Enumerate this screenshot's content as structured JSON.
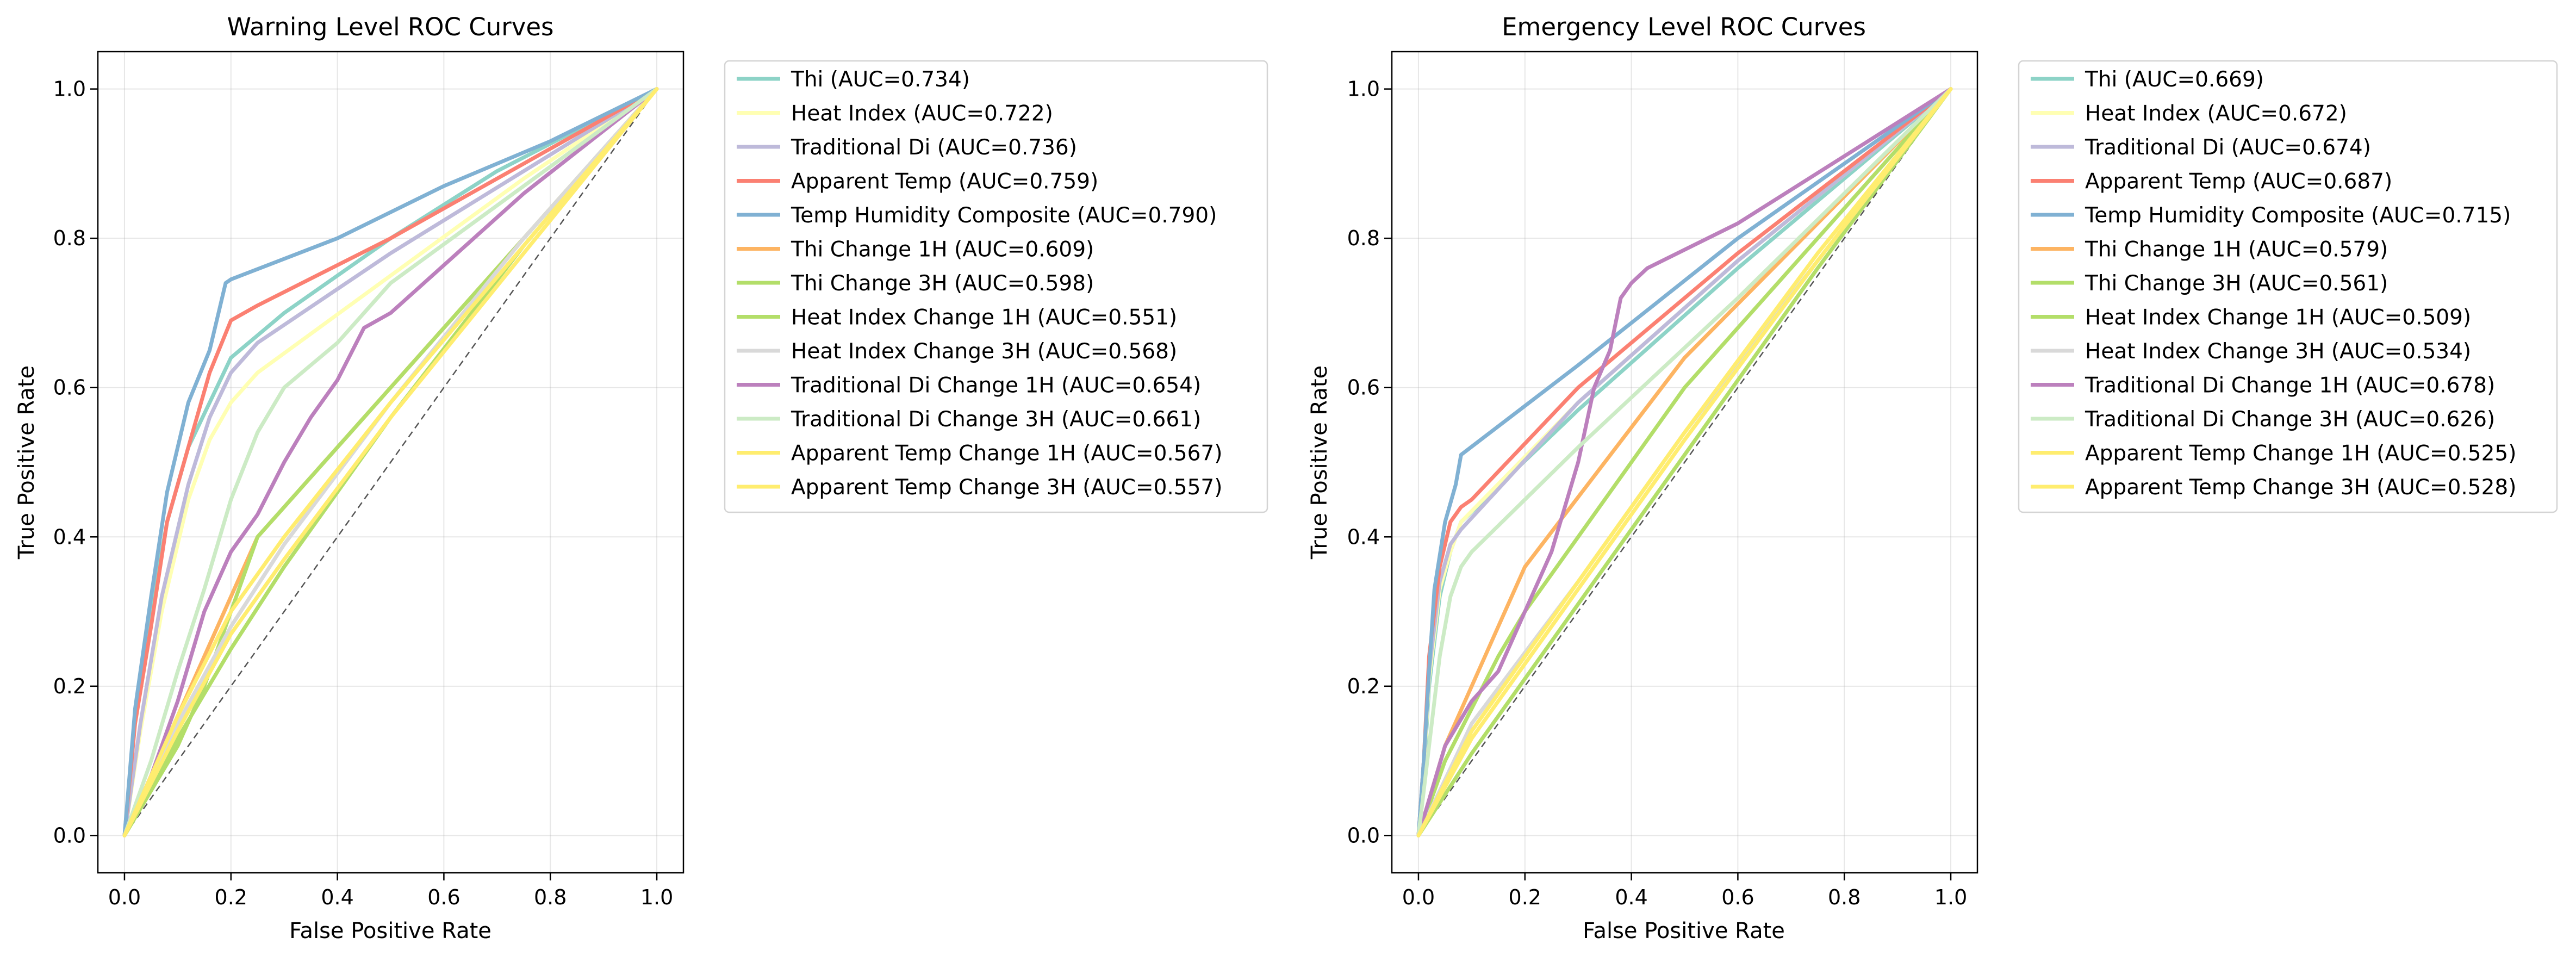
{
  "chart_data": [
    {
      "type": "line",
      "title": "Warning Level ROC Curves",
      "xlabel": "False Positive Rate",
      "ylabel": "True Positive Rate",
      "xlim": [
        -0.05,
        1.05
      ],
      "ylim": [
        -0.05,
        1.05
      ],
      "xticks": [
        "0.0",
        "0.2",
        "0.4",
        "0.6",
        "0.8",
        "1.0"
      ],
      "yticks": [
        "0.0",
        "0.2",
        "0.4",
        "0.6",
        "0.8",
        "1.0"
      ],
      "grid": true,
      "legend_position": "outside-right",
      "reference_line": "diagonal",
      "series": [
        {
          "name": "Thi (AUC=0.734)",
          "color": "#8dd3c7",
          "x": [
            0,
            0.02,
            0.05,
            0.08,
            0.12,
            0.16,
            0.2,
            0.3,
            0.5,
            0.7,
            1.0
          ],
          "y": [
            0,
            0.16,
            0.3,
            0.42,
            0.52,
            0.58,
            0.64,
            0.7,
            0.8,
            0.89,
            1.0
          ]
        },
        {
          "name": "Heat Index (AUC=0.722)",
          "color": "#ffffb3",
          "x": [
            0,
            0.03,
            0.07,
            0.12,
            0.16,
            0.2,
            0.25,
            0.5,
            0.75,
            1.0
          ],
          "y": [
            0,
            0.14,
            0.3,
            0.45,
            0.53,
            0.58,
            0.62,
            0.75,
            0.88,
            1.0
          ]
        },
        {
          "name": "Traditional Di (AUC=0.736)",
          "color": "#bebada",
          "x": [
            0,
            0.03,
            0.07,
            0.12,
            0.16,
            0.2,
            0.25,
            0.5,
            0.75,
            1.0
          ],
          "y": [
            0,
            0.15,
            0.32,
            0.47,
            0.56,
            0.62,
            0.66,
            0.78,
            0.89,
            1.0
          ]
        },
        {
          "name": "Apparent Temp (AUC=0.759)",
          "color": "#fb8072",
          "x": [
            0,
            0.02,
            0.05,
            0.08,
            0.12,
            0.16,
            0.2,
            0.25,
            0.5,
            0.75,
            1.0
          ],
          "y": [
            0,
            0.15,
            0.28,
            0.42,
            0.52,
            0.62,
            0.69,
            0.71,
            0.8,
            0.9,
            1.0
          ]
        },
        {
          "name": "Temp Humidity Composite (AUC=0.790)",
          "color": "#80b1d3",
          "x": [
            0,
            0.02,
            0.05,
            0.08,
            0.12,
            0.16,
            0.19,
            0.2,
            0.4,
            0.6,
            0.8,
            1.0
          ],
          "y": [
            0,
            0.17,
            0.32,
            0.46,
            0.58,
            0.65,
            0.74,
            0.745,
            0.8,
            0.87,
            0.93,
            1.0
          ]
        },
        {
          "name": "Thi Change 1H (AUC=0.609)",
          "color": "#fdb462",
          "x": [
            0,
            0.05,
            0.1,
            0.15,
            0.2,
            0.25,
            0.5,
            0.75,
            1.0
          ],
          "y": [
            0,
            0.08,
            0.16,
            0.24,
            0.32,
            0.4,
            0.6,
            0.8,
            1.0
          ]
        },
        {
          "name": "Thi Change 3H (AUC=0.598)",
          "color": "#b3de69",
          "x": [
            0,
            0.05,
            0.1,
            0.15,
            0.2,
            0.25,
            0.5,
            0.75,
            1.0
          ],
          "y": [
            0,
            0.06,
            0.12,
            0.2,
            0.3,
            0.4,
            0.6,
            0.8,
            1.0
          ]
        },
        {
          "name": "Heat Index Change 1H (AUC=0.551)",
          "color": "#b3de69",
          "x": [
            0,
            0.1,
            0.2,
            0.3,
            0.5,
            0.75,
            1.0
          ],
          "y": [
            0,
            0.13,
            0.25,
            0.36,
            0.56,
            0.79,
            1.0
          ]
        },
        {
          "name": "Heat Index Change 3H (AUC=0.568)",
          "color": "#d9d9d9",
          "x": [
            0,
            0.1,
            0.2,
            0.3,
            0.5,
            0.75,
            1.0
          ],
          "y": [
            0,
            0.15,
            0.28,
            0.39,
            0.58,
            0.8,
            1.0
          ]
        },
        {
          "name": "Traditional Di Change 1H (AUC=0.654)",
          "color": "#bc80bd",
          "x": [
            0,
            0.05,
            0.1,
            0.15,
            0.2,
            0.25,
            0.3,
            0.35,
            0.4,
            0.45,
            0.5,
            0.75,
            1.0
          ],
          "y": [
            0,
            0.08,
            0.18,
            0.3,
            0.38,
            0.43,
            0.5,
            0.56,
            0.61,
            0.68,
            0.7,
            0.86,
            1.0
          ]
        },
        {
          "name": "Traditional Di Change 3H (AUC=0.661)",
          "color": "#ccebc5",
          "x": [
            0,
            0.05,
            0.1,
            0.15,
            0.2,
            0.25,
            0.3,
            0.35,
            0.4,
            0.45,
            0.5,
            0.75,
            1.0
          ],
          "y": [
            0,
            0.1,
            0.22,
            0.33,
            0.45,
            0.54,
            0.6,
            0.63,
            0.66,
            0.7,
            0.74,
            0.87,
            1.0
          ]
        },
        {
          "name": "Apparent Temp Change 1H (AUC=0.567)",
          "color": "#ffed6f",
          "x": [
            0,
            0.1,
            0.2,
            0.3,
            0.5,
            0.75,
            1.0
          ],
          "y": [
            0,
            0.16,
            0.3,
            0.4,
            0.58,
            0.79,
            1.0
          ]
        },
        {
          "name": "Apparent Temp Change 3H (AUC=0.557)",
          "color": "#ffed6f",
          "x": [
            0,
            0.1,
            0.2,
            0.3,
            0.5,
            0.75,
            1.0
          ],
          "y": [
            0,
            0.14,
            0.27,
            0.37,
            0.56,
            0.78,
            1.0
          ]
        }
      ]
    },
    {
      "type": "line",
      "title": "Emergency Level ROC Curves",
      "xlabel": "False Positive Rate",
      "ylabel": "True Positive Rate",
      "xlim": [
        -0.05,
        1.05
      ],
      "ylim": [
        -0.05,
        1.05
      ],
      "xticks": [
        "0.0",
        "0.2",
        "0.4",
        "0.6",
        "0.8",
        "1.0"
      ],
      "yticks": [
        "0.0",
        "0.2",
        "0.4",
        "0.6",
        "0.8",
        "1.0"
      ],
      "grid": true,
      "legend_position": "outside-right",
      "reference_line": "diagonal",
      "series": [
        {
          "name": "Thi (AUC=0.669)",
          "color": "#8dd3c7",
          "x": [
            0,
            0.01,
            0.02,
            0.04,
            0.06,
            0.08,
            0.3,
            0.6,
            1.0
          ],
          "y": [
            0,
            0.08,
            0.2,
            0.32,
            0.38,
            0.42,
            0.57,
            0.76,
            1.0
          ]
        },
        {
          "name": "Heat Index (AUC=0.672)",
          "color": "#ffffb3",
          "x": [
            0,
            0.01,
            0.02,
            0.04,
            0.06,
            0.08,
            0.3,
            0.6,
            1.0
          ],
          "y": [
            0,
            0.09,
            0.21,
            0.33,
            0.38,
            0.42,
            0.58,
            0.77,
            1.0
          ]
        },
        {
          "name": "Traditional Di (AUC=0.674)",
          "color": "#bebada",
          "x": [
            0,
            0.01,
            0.02,
            0.04,
            0.06,
            0.08,
            0.3,
            0.6,
            1.0
          ],
          "y": [
            0,
            0.1,
            0.22,
            0.34,
            0.39,
            0.41,
            0.58,
            0.77,
            1.0
          ]
        },
        {
          "name": "Apparent Temp (AUC=0.687)",
          "color": "#fb8072",
          "x": [
            0,
            0.01,
            0.02,
            0.04,
            0.06,
            0.08,
            0.1,
            0.3,
            0.6,
            1.0
          ],
          "y": [
            0,
            0.1,
            0.24,
            0.36,
            0.42,
            0.44,
            0.45,
            0.6,
            0.78,
            1.0
          ]
        },
        {
          "name": "Temp Humidity Composite (AUC=0.715)",
          "color": "#80b1d3",
          "x": [
            0,
            0.01,
            0.02,
            0.03,
            0.05,
            0.07,
            0.08,
            0.3,
            0.6,
            1.0
          ],
          "y": [
            0,
            0.1,
            0.22,
            0.33,
            0.42,
            0.47,
            0.51,
            0.63,
            0.8,
            1.0
          ]
        },
        {
          "name": "Thi Change 1H (AUC=0.579)",
          "color": "#fdb462",
          "x": [
            0,
            0.05,
            0.1,
            0.15,
            0.2,
            0.5,
            1.0
          ],
          "y": [
            0,
            0.12,
            0.2,
            0.28,
            0.36,
            0.64,
            1.0
          ]
        },
        {
          "name": "Thi Change 3H (AUC=0.561)",
          "color": "#b3de69",
          "x": [
            0,
            0.05,
            0.1,
            0.15,
            0.2,
            0.5,
            1.0
          ],
          "y": [
            0,
            0.1,
            0.17,
            0.24,
            0.3,
            0.6,
            1.0
          ]
        },
        {
          "name": "Heat Index Change 1H (AUC=0.509)",
          "color": "#b3de69",
          "x": [
            0,
            0.1,
            0.3,
            0.5,
            0.75,
            1.0
          ],
          "y": [
            0,
            0.11,
            0.31,
            0.51,
            0.76,
            1.0
          ]
        },
        {
          "name": "Heat Index Change 3H (AUC=0.534)",
          "color": "#d9d9d9",
          "x": [
            0,
            0.1,
            0.3,
            0.5,
            0.75,
            1.0
          ],
          "y": [
            0,
            0.15,
            0.34,
            0.54,
            0.77,
            1.0
          ]
        },
        {
          "name": "Traditional Di Change 1H (AUC=0.678)",
          "color": "#bc80bd",
          "x": [
            0,
            0.05,
            0.1,
            0.15,
            0.2,
            0.25,
            0.3,
            0.33,
            0.36,
            0.38,
            0.4,
            0.43,
            0.6,
            0.8,
            1.0
          ],
          "y": [
            0,
            0.12,
            0.18,
            0.22,
            0.3,
            0.38,
            0.5,
            0.6,
            0.65,
            0.72,
            0.74,
            0.76,
            0.82,
            0.91,
            1.0
          ]
        },
        {
          "name": "Traditional Di Change 3H (AUC=0.626)",
          "color": "#ccebc5",
          "x": [
            0,
            0.02,
            0.04,
            0.06,
            0.08,
            0.1,
            0.3,
            0.6,
            1.0
          ],
          "y": [
            0,
            0.12,
            0.24,
            0.32,
            0.36,
            0.38,
            0.52,
            0.72,
            1.0
          ]
        },
        {
          "name": "Apparent Temp Change 1H (AUC=0.525)",
          "color": "#ffed6f",
          "x": [
            0,
            0.1,
            0.3,
            0.5,
            0.75,
            1.0
          ],
          "y": [
            0,
            0.13,
            0.33,
            0.53,
            0.77,
            1.0
          ]
        },
        {
          "name": "Apparent Temp Change 3H (AUC=0.528)",
          "color": "#ffed6f",
          "x": [
            0,
            0.1,
            0.3,
            0.5,
            0.75,
            1.0
          ],
          "y": [
            0,
            0.14,
            0.34,
            0.54,
            0.78,
            1.0
          ]
        }
      ]
    }
  ]
}
